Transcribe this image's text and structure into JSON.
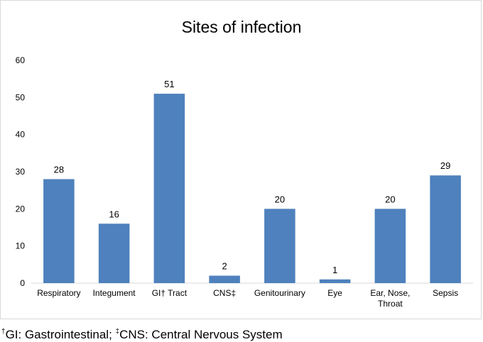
{
  "chart_data": {
    "type": "bar",
    "title": "Sites of infection",
    "categories": [
      [
        "Respiratory"
      ],
      [
        "Integument"
      ],
      [
        "GI† Tract"
      ],
      [
        "CNS‡"
      ],
      [
        "Genitourinary"
      ],
      [
        "Eye"
      ],
      [
        "Ear, Nose,",
        "Throat"
      ],
      [
        "Sepsis"
      ]
    ],
    "values": [
      28,
      16,
      51,
      2,
      20,
      1,
      20,
      29
    ],
    "ylim": [
      0,
      60
    ],
    "yticks": [
      0,
      10,
      20,
      30,
      40,
      50,
      60
    ],
    "xlabel": "",
    "ylabel": "",
    "grid": false,
    "legend": "none",
    "bar_color": "#4e81bd"
  },
  "footnote": {
    "mark1": "†",
    "text1": "GI: Gastrointestinal; ",
    "mark2": "‡",
    "text2": "CNS: Central Nervous System"
  }
}
